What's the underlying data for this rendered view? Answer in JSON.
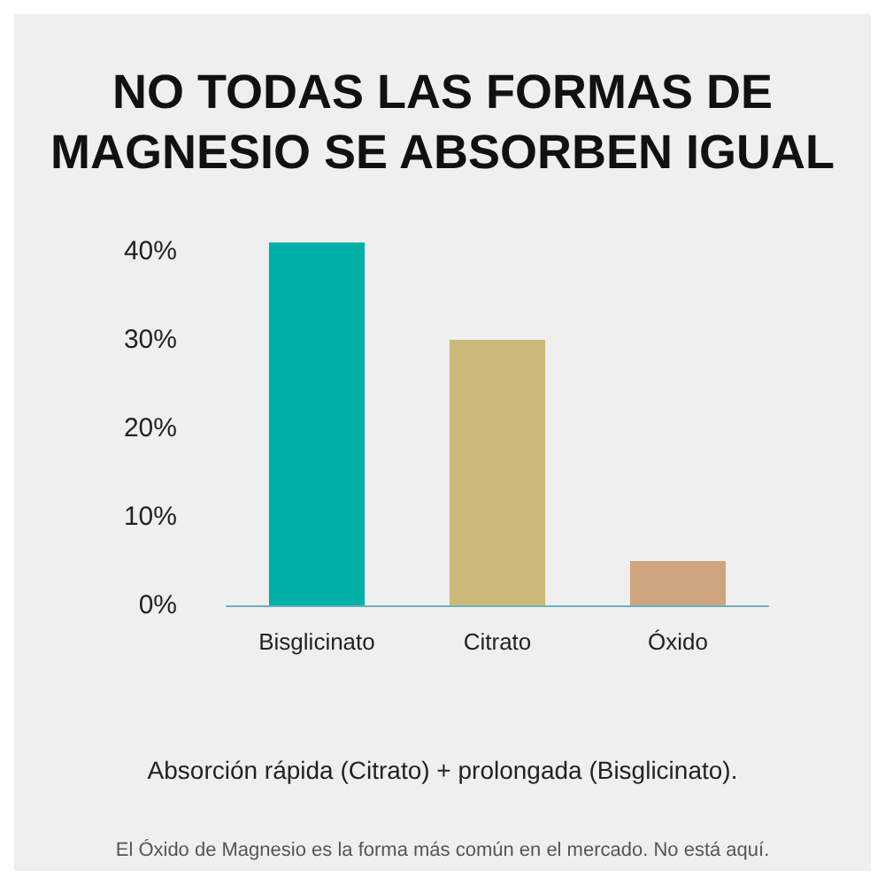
{
  "chart_data": {
    "type": "bar",
    "title": "NO TODAS LAS FORMAS DE\nMAGNESIO SE ABSORBEN IGUAL",
    "categories": [
      "Bisglicinato",
      "Citrato",
      "Óxido"
    ],
    "values": [
      41,
      30,
      5
    ],
    "colors": [
      "#00b0a6",
      "#cbbb7a",
      "#cfa57f"
    ],
    "ylim": [
      0,
      42
    ],
    "yticks": [
      {
        "value": 0,
        "label": "0%"
      },
      {
        "value": 10,
        "label": "10%"
      },
      {
        "value": 20,
        "label": "20%"
      },
      {
        "value": 30,
        "label": "30%"
      },
      {
        "value": 40,
        "label": "40%"
      }
    ],
    "grid": false,
    "annotations": [
      "Absorción rápida (Citrato) + prolongada (Bisglicinato).",
      "El Óxido de Magnesio es la forma más común en el mercado. No está aquí."
    ]
  }
}
